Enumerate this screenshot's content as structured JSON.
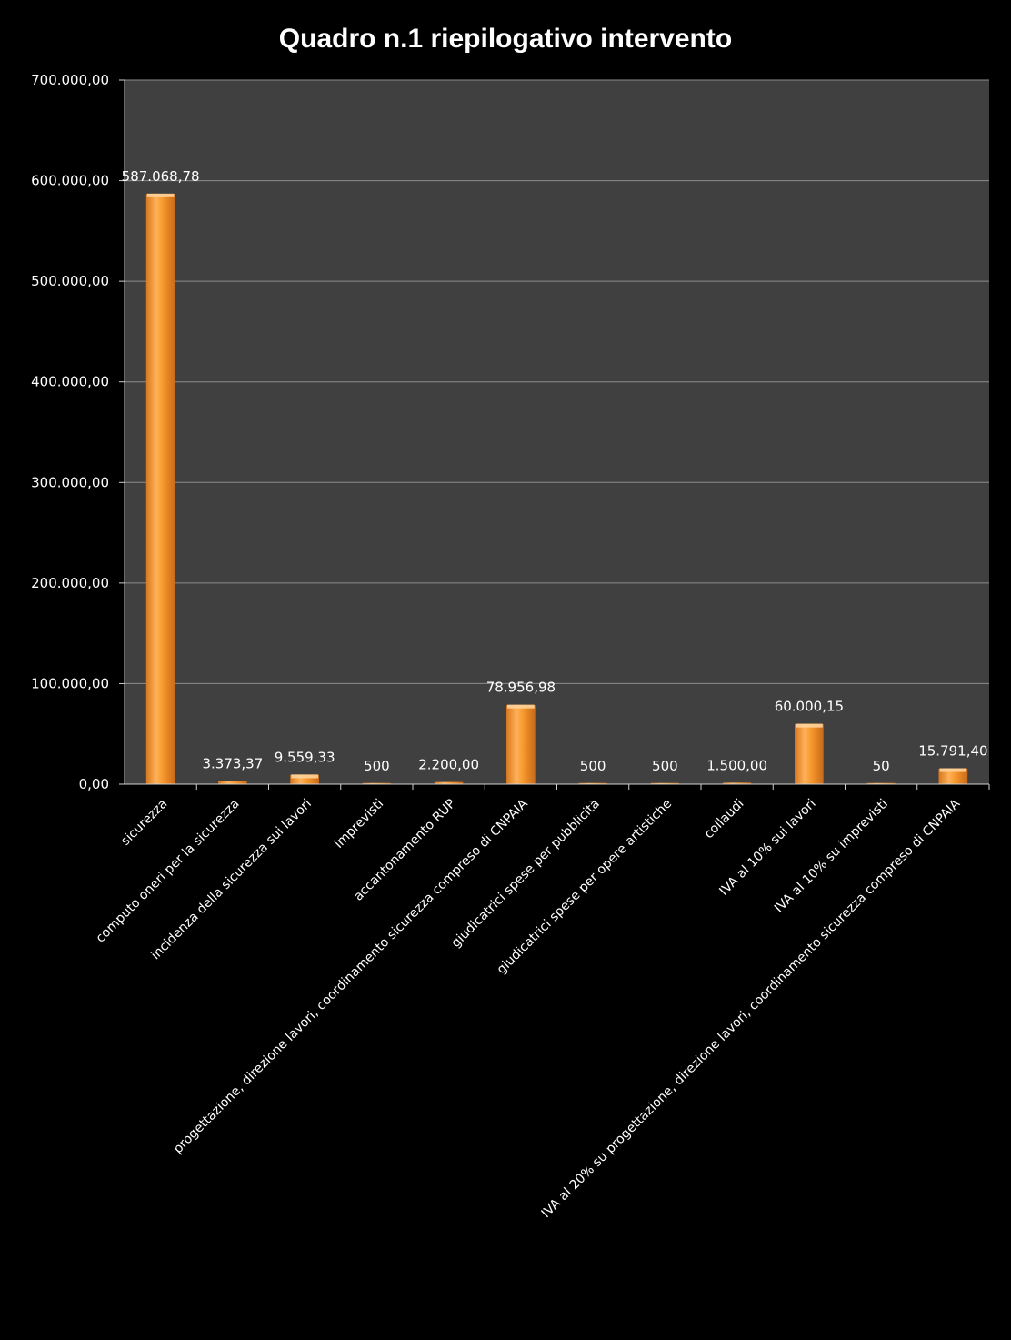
{
  "chart_data": {
    "type": "bar",
    "title": "Quadro n.1 riepilogativo intervento",
    "xlabel": "",
    "ylabel": "",
    "ylim": [
      0,
      700000
    ],
    "grid": true,
    "legend": "none",
    "y_ticks": [
      {
        "value": 0,
        "label": "0,00"
      },
      {
        "value": 100000,
        "label": "100.000,00"
      },
      {
        "value": 200000,
        "label": "200.000,00"
      },
      {
        "value": 300000,
        "label": "300.000,00"
      },
      {
        "value": 400000,
        "label": "400.000,00"
      },
      {
        "value": 500000,
        "label": "500.000,00"
      },
      {
        "value": 600000,
        "label": "600.000,00"
      },
      {
        "value": 700000,
        "label": "700.000,00"
      }
    ],
    "categories": [
      "sicurezza",
      "computo oneri per la sicurezza",
      "incidenza della sicurezza sui lavori",
      "imprevisti",
      "accantonamento RUP",
      "progettazione, direzione lavori, coordinamento sicurezza compreso di CNPAIA",
      "giudicatrici spese per pubblicità",
      "giudicatrici spese per opere artistiche",
      "collaudi",
      "IVA al 10% sui lavori",
      "IVA al 10% su imprevisti",
      "IVA al 20% su progettazione, direzione lavori, coordinamento sicurezza compreso di CNPAIA"
    ],
    "values": [
      587068.78,
      3373.37,
      9559.33,
      500,
      2200,
      78956.98,
      500,
      500,
      1500,
      60000.15,
      50,
      15791.4
    ],
    "data_labels": [
      "587.068,78",
      "3.373,37",
      "9.559,33",
      "500",
      "2.200,00",
      "78.956,98",
      "500",
      "500",
      "1.500,00",
      "60.000,15",
      "50",
      "15.791,40"
    ],
    "colors": {
      "background": "#000000",
      "plot_area": "#404040",
      "gridline": "#8c8c8c",
      "bar": "#f5962a",
      "bar_light": "#ffd199",
      "bar_dark": "#c8691a",
      "text": "#ffffff"
    }
  }
}
